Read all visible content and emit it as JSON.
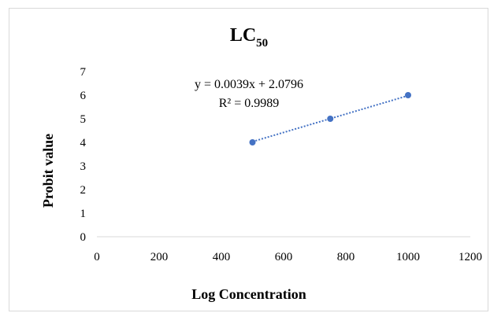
{
  "chart_data": {
    "type": "scatter",
    "title": {
      "main": "LC",
      "subscript": "50"
    },
    "xlabel": "Log Concentration",
    "ylabel": "Probit value",
    "xlim": [
      0,
      1200
    ],
    "ylim": [
      0,
      7
    ],
    "x_ticks": [
      "0",
      "200",
      "400",
      "600",
      "800",
      "1000",
      "1200"
    ],
    "y_ticks": [
      "0",
      "1",
      "2",
      "3",
      "4",
      "5",
      "6",
      "7"
    ],
    "grid": false,
    "legend": "none",
    "series": [
      {
        "points": [
          {
            "x": 500,
            "y": 4
          },
          {
            "x": 750,
            "y": 5
          },
          {
            "x": 1000,
            "y": 6
          }
        ],
        "color": "#4472C4"
      }
    ],
    "trendline": {
      "type": "linear",
      "slope": 0.0039,
      "intercept": 2.0796,
      "x_range": [
        500,
        1000
      ],
      "style": "dotted",
      "color": "#4472C4",
      "equation_label": "y = 0.0039x + 2.0796",
      "r2_label": "R² = 0.9989"
    }
  }
}
